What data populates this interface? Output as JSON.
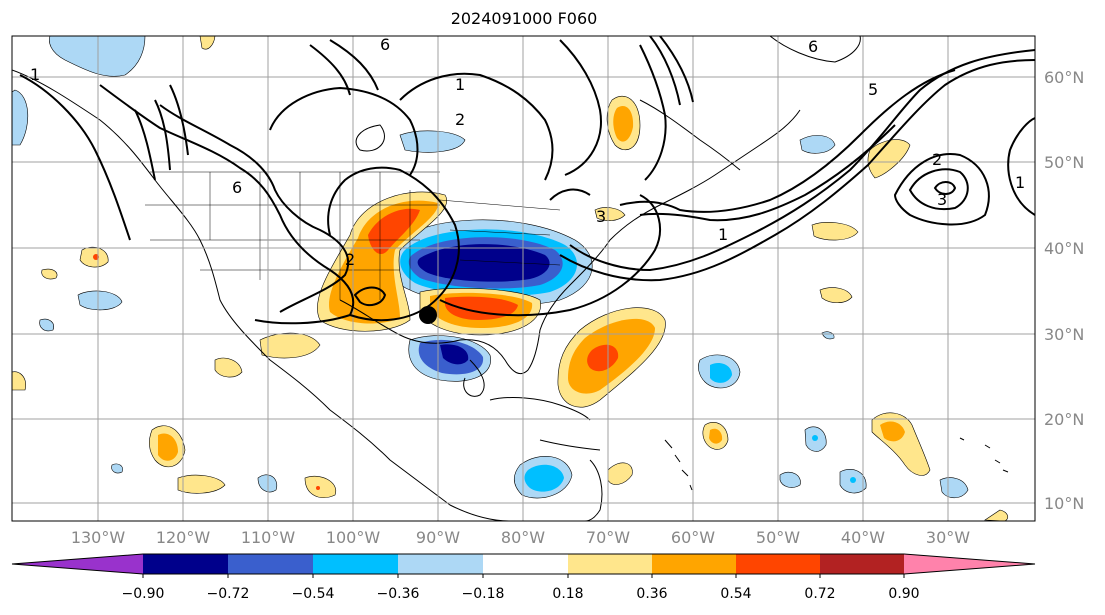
{
  "title": "2024091000 F060",
  "lat_labels": [
    "60°N",
    "50°N",
    "40°N",
    "30°N",
    "20°N",
    "10°N"
  ],
  "lon_labels": [
    "130°W",
    "120°W",
    "110°W",
    "100°W",
    "90°W",
    "80°W",
    "70°W",
    "60°W",
    "50°W",
    "40°W",
    "30°W"
  ],
  "contour_labels": [
    "6",
    "6",
    "6",
    "5",
    "2",
    "2",
    "3",
    "1",
    "1",
    "1",
    "1",
    "2",
    "3"
  ],
  "colorbar": {
    "tick_labels": [
      "−0.90",
      "−0.72",
      "−0.54",
      "−0.36",
      "−0.18",
      "0.18",
      "0.36",
      "0.54",
      "0.72",
      "0.90"
    ],
    "colors": [
      "#9932cc",
      "#00008b",
      "#3a5fcd",
      "#00bfff",
      "#add8f5",
      "#ffffff",
      "#ffe68c",
      "#ffa500",
      "#ff4500",
      "#b22222",
      "#ff82ab"
    ]
  },
  "marker": {
    "label": "",
    "color": "#000000"
  },
  "grid_color": "#a0a0a0"
}
